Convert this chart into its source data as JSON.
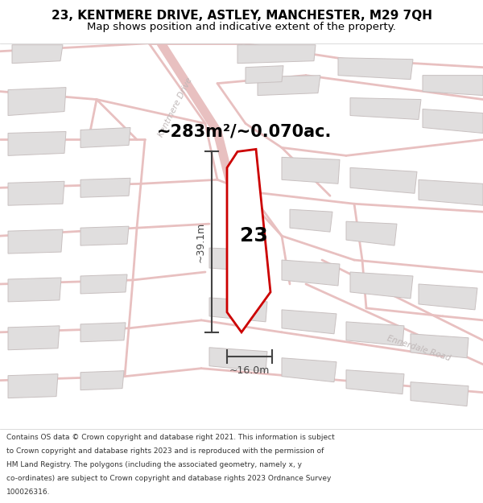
{
  "title": "23, KENTMERE DRIVE, ASTLEY, MANCHESTER, M29 7QH",
  "subtitle": "Map shows position and indicative extent of the property.",
  "area_text": "~283m²/~0.070ac.",
  "property_number": "23",
  "dim_width": "~16.0m",
  "dim_height": "~39.1m",
  "footer_text": "Contains OS data © Crown copyright and database right 2021. This information is subject to Crown copyright and database rights 2023 and is reproduced with the permission of HM Land Registry. The polygons (including the associated geometry, namely x, y co-ordinates) are subject to Crown copyright and database rights 2023 Ordnance Survey 100026316.",
  "map_bg": "#f2eded",
  "road_color": "#e8c0c0",
  "building_fill": "#e0dede",
  "building_edge": "#c8c0c0",
  "property_fill": "#ffffff",
  "property_edge": "#cc0000",
  "dim_color": "#444444",
  "title_color": "#000000",
  "footer_color": "#333333",
  "road_label_color": "#c0b8b8",
  "area_color": "#000000",
  "title_fontsize": 11,
  "subtitle_fontsize": 9.5,
  "area_fontsize": 15,
  "prop_num_fontsize": 18,
  "dim_fontsize": 9,
  "footer_fontsize": 6.5
}
